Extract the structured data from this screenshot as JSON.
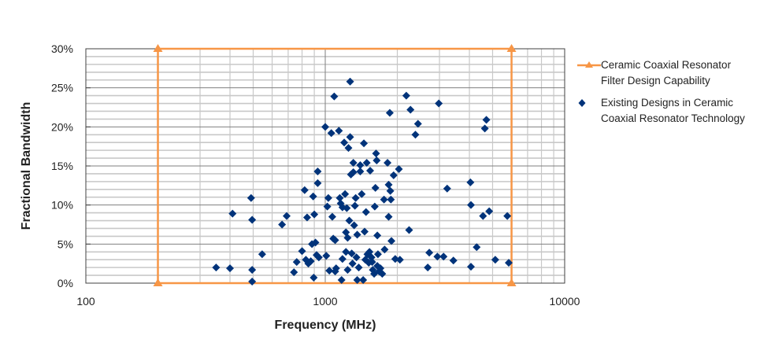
{
  "chart_data": {
    "type": "scatter",
    "title": "",
    "xlabel": "Frequency (MHz)",
    "ylabel": "Fractional Bandwidth",
    "xscale": "log",
    "xlim": [
      100,
      10000
    ],
    "ylim": [
      0,
      30
    ],
    "x_ticks": [
      "100",
      "1000",
      "10000"
    ],
    "y_ticks": [
      "0%",
      "5%",
      "10%",
      "15%",
      "20%",
      "25%",
      "30%"
    ],
    "grid": true,
    "legend_position": "right",
    "series": [
      {
        "name": "Ceramic Coaxial Resonator Filter Design Capability",
        "type": "line",
        "color": "#F79646",
        "marker": "triangle",
        "points": [
          [
            200,
            0
          ],
          [
            200,
            30
          ],
          [
            6000,
            30
          ],
          [
            6000,
            0
          ],
          [
            200,
            0
          ]
        ]
      },
      {
        "name": "Existing Designs in Ceramic Coaxial Resonator Technology",
        "type": "scatter",
        "color": "#00337A",
        "marker": "diamond",
        "points": [
          [
            350,
            2.0
          ],
          [
            400,
            1.9
          ],
          [
            410,
            8.9
          ],
          [
            490,
            10.9
          ],
          [
            495,
            8.1
          ],
          [
            495,
            1.7
          ],
          [
            495,
            0.2
          ],
          [
            545,
            3.7
          ],
          [
            660,
            7.5
          ],
          [
            690,
            8.6
          ],
          [
            740,
            1.4
          ],
          [
            760,
            2.7
          ],
          [
            800,
            4.1
          ],
          [
            820,
            11.9
          ],
          [
            830,
            3.0
          ],
          [
            840,
            8.4
          ],
          [
            850,
            2.5
          ],
          [
            870,
            2.8
          ],
          [
            880,
            5.0
          ],
          [
            890,
            11.1
          ],
          [
            895,
            0.7
          ],
          [
            900,
            8.8
          ],
          [
            910,
            5.2
          ],
          [
            920,
            3.6
          ],
          [
            930,
            14.3
          ],
          [
            930,
            12.8
          ],
          [
            940,
            3.3
          ],
          [
            1000,
            20.0
          ],
          [
            1010,
            3.5
          ],
          [
            1020,
            9.8
          ],
          [
            1030,
            10.9
          ],
          [
            1040,
            1.6
          ],
          [
            1060,
            19.2
          ],
          [
            1070,
            8.5
          ],
          [
            1080,
            5.7
          ],
          [
            1090,
            23.9
          ],
          [
            1100,
            5.5
          ],
          [
            1100,
            1.5
          ],
          [
            1110,
            1.9
          ],
          [
            1140,
            19.5
          ],
          [
            1150,
            10.9
          ],
          [
            1160,
            10.2
          ],
          [
            1170,
            0.4
          ],
          [
            1180,
            3.1
          ],
          [
            1180,
            9.7
          ],
          [
            1200,
            18.0
          ],
          [
            1210,
            11.4
          ],
          [
            1220,
            4.0
          ],
          [
            1220,
            6.5
          ],
          [
            1230,
            9.6
          ],
          [
            1240,
            1.7
          ],
          [
            1240,
            5.8
          ],
          [
            1250,
            17.3
          ],
          [
            1260,
            8.0
          ],
          [
            1270,
            25.8
          ],
          [
            1270,
            18.7
          ],
          [
            1280,
            13.9
          ],
          [
            1290,
            3.8
          ],
          [
            1300,
            2.5
          ],
          [
            1310,
            15.4
          ],
          [
            1310,
            14.2
          ],
          [
            1320,
            7.4
          ],
          [
            1330,
            9.9
          ],
          [
            1340,
            10.9
          ],
          [
            1350,
            3.3
          ],
          [
            1360,
            0.4
          ],
          [
            1360,
            6.2
          ],
          [
            1380,
            2.0
          ],
          [
            1400,
            15.1
          ],
          [
            1400,
            14.3
          ],
          [
            1420,
            11.4
          ],
          [
            1440,
            0.4
          ],
          [
            1450,
            17.9
          ],
          [
            1460,
            6.6
          ],
          [
            1470,
            3.0
          ],
          [
            1480,
            9.1
          ],
          [
            1490,
            15.4
          ],
          [
            1500,
            3.7
          ],
          [
            1520,
            2.6
          ],
          [
            1530,
            4.0
          ],
          [
            1540,
            14.4
          ],
          [
            1560,
            3.3
          ],
          [
            1570,
            2.7
          ],
          [
            1580,
            1.7
          ],
          [
            1600,
            1.2
          ],
          [
            1610,
            9.8
          ],
          [
            1620,
            12.2
          ],
          [
            1630,
            16.6
          ],
          [
            1640,
            15.7
          ],
          [
            1650,
            6.1
          ],
          [
            1650,
            2.2
          ],
          [
            1660,
            3.7
          ],
          [
            1680,
            1.5
          ],
          [
            1700,
            1.9
          ],
          [
            1730,
            1.2
          ],
          [
            1760,
            10.7
          ],
          [
            1770,
            4.3
          ],
          [
            1820,
            15.4
          ],
          [
            1840,
            12.6
          ],
          [
            1840,
            8.5
          ],
          [
            1860,
            21.8
          ],
          [
            1870,
            11.8
          ],
          [
            1880,
            10.7
          ],
          [
            1890,
            5.4
          ],
          [
            1930,
            13.8
          ],
          [
            1960,
            3.1
          ],
          [
            2030,
            14.6
          ],
          [
            2050,
            3.0
          ],
          [
            2180,
            24.0
          ],
          [
            2240,
            6.8
          ],
          [
            2270,
            22.2
          ],
          [
            2380,
            19.0
          ],
          [
            2440,
            20.4
          ],
          [
            2680,
            2.0
          ],
          [
            2720,
            3.9
          ],
          [
            2940,
            3.4
          ],
          [
            2980,
            23.0
          ],
          [
            3120,
            3.4
          ],
          [
            3230,
            12.1
          ],
          [
            3430,
            2.9
          ],
          [
            4040,
            12.9
          ],
          [
            4060,
            10.0
          ],
          [
            4060,
            2.1
          ],
          [
            4290,
            4.6
          ],
          [
            4560,
            8.6
          ],
          [
            4640,
            19.8
          ],
          [
            4710,
            20.9
          ],
          [
            4840,
            9.2
          ],
          [
            5130,
            3.0
          ],
          [
            5760,
            8.6
          ],
          [
            5840,
            2.6
          ]
        ]
      }
    ]
  },
  "axes": {
    "x_title": "Frequency (MHz)",
    "y_title": "Fractional Bandwidth",
    "x_tick_labels": [
      "100",
      "1000",
      "10000"
    ],
    "y_tick_labels": [
      "0%",
      "5%",
      "10%",
      "15%",
      "20%",
      "25%",
      "30%"
    ]
  },
  "legend": {
    "capability_line1": "Ceramic Coaxial Resonator",
    "capability_line2": "Filter Design Capability",
    "designs_line1": "Existing Designs in Ceramic",
    "designs_line2": "Coaxial Resonator Technology"
  },
  "colors": {
    "capability": "#F79646",
    "designs": "#00337A",
    "major_grid": "#7F7F7F",
    "minor_grid": "#C8C8C8",
    "frame": "#404040"
  }
}
